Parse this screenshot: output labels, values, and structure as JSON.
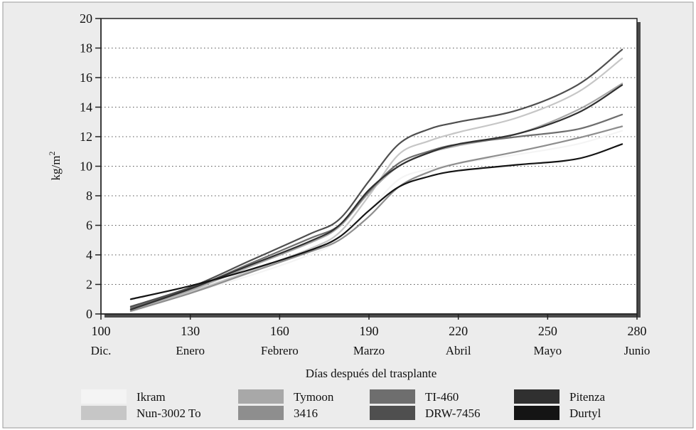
{
  "chart_data": {
    "type": "line",
    "title": "",
    "xlabel": "Días después del trasplante",
    "ylabel": "kg/m²",
    "xlim": [
      100,
      280
    ],
    "ylim": [
      0,
      20
    ],
    "x_ticks": [
      100,
      130,
      160,
      190,
      220,
      250,
      280
    ],
    "x_tick_months": [
      "Dic.",
      "Enero",
      "Febrero",
      "Marzo",
      "Abril",
      "Mayo",
      "Junio"
    ],
    "y_ticks": [
      0,
      2,
      4,
      6,
      8,
      10,
      12,
      14,
      16,
      18,
      20
    ],
    "grid": "horizontal dotted",
    "legend_position": "bottom",
    "series": [
      {
        "name": "Ikram",
        "color": "#f4f4f4",
        "x": [
          110,
          130,
          150,
          170,
          180,
          190,
          200,
          210,
          220,
          240,
          260,
          275
        ],
        "y": [
          0.1,
          1.4,
          2.6,
          4.0,
          5.0,
          7.0,
          9.1,
          9.8,
          10.2,
          10.8,
          11.5,
          12.4
        ]
      },
      {
        "name": "Nun-3002 To",
        "color": "#c6c6c6",
        "x": [
          110,
          130,
          150,
          170,
          180,
          190,
          200,
          210,
          220,
          240,
          260,
          275
        ],
        "y": [
          0.2,
          1.5,
          2.9,
          4.4,
          5.5,
          8.0,
          10.8,
          11.7,
          12.3,
          13.3,
          15.0,
          17.3
        ]
      },
      {
        "name": "Tymoon",
        "color": "#a8a8a8",
        "x": [
          110,
          130,
          150,
          170,
          180,
          190,
          200,
          210,
          220,
          240,
          260,
          275
        ],
        "y": [
          0.3,
          1.6,
          3.2,
          4.8,
          5.9,
          8.2,
          10.0,
          10.9,
          11.4,
          12.2,
          13.8,
          15.6
        ]
      },
      {
        "name": "3416",
        "color": "#8e8e8e",
        "x": [
          110,
          130,
          150,
          170,
          180,
          190,
          200,
          210,
          220,
          240,
          260,
          275
        ],
        "y": [
          0.2,
          1.4,
          2.8,
          4.2,
          5.0,
          6.6,
          8.6,
          9.6,
          10.2,
          11.0,
          11.9,
          12.7
        ]
      },
      {
        "name": "TI-460",
        "color": "#6e6e6e",
        "x": [
          110,
          130,
          150,
          170,
          180,
          190,
          200,
          210,
          220,
          240,
          260,
          275
        ],
        "y": [
          0.4,
          1.7,
          3.4,
          5.1,
          6.0,
          8.3,
          10.2,
          11.0,
          11.5,
          12.0,
          12.5,
          13.5
        ]
      },
      {
        "name": "DRW-7456",
        "color": "#4f4f4f",
        "x": [
          110,
          130,
          150,
          170,
          180,
          190,
          200,
          210,
          220,
          240,
          260,
          275
        ],
        "y": [
          0.5,
          1.8,
          3.6,
          5.4,
          6.4,
          9.0,
          11.5,
          12.5,
          13.0,
          13.8,
          15.5,
          17.9
        ]
      },
      {
        "name": "Pitenza",
        "color": "#303030",
        "x": [
          110,
          130,
          150,
          170,
          180,
          190,
          200,
          210,
          220,
          240,
          260,
          275
        ],
        "y": [
          0.3,
          1.7,
          3.3,
          4.9,
          6.0,
          8.4,
          10.0,
          10.9,
          11.5,
          12.2,
          13.6,
          15.5
        ]
      },
      {
        "name": "Durtyl",
        "color": "#141414",
        "x": [
          110,
          130,
          150,
          170,
          180,
          190,
          200,
          210,
          220,
          240,
          260,
          275
        ],
        "y": [
          1.0,
          1.9,
          3.0,
          4.3,
          5.2,
          7.0,
          8.6,
          9.3,
          9.7,
          10.1,
          10.5,
          11.5
        ]
      }
    ]
  }
}
